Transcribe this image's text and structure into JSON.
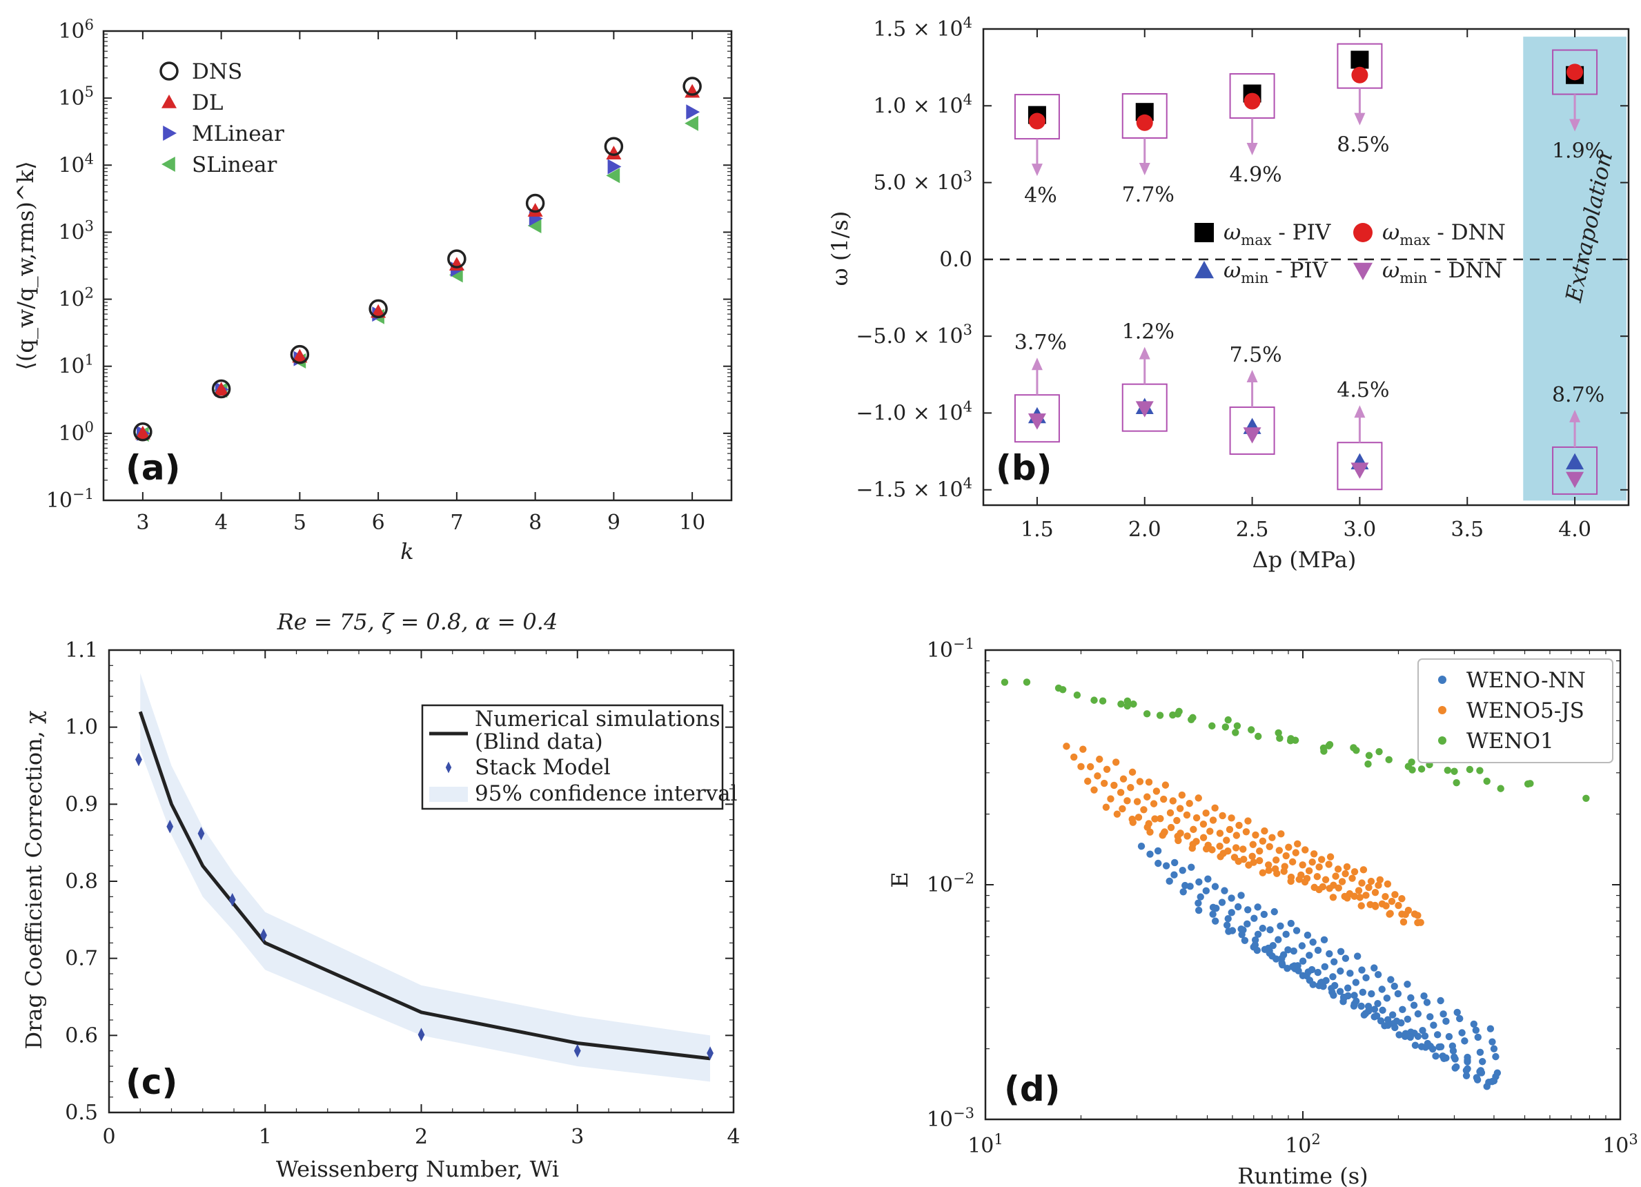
{
  "chart_data": [
    {
      "panel": "(a)",
      "type": "scatter",
      "xscale": "linear",
      "yscale": "log",
      "xlabel": "k",
      "ylabel": "⟨(q_w/q_w,rms)^k⟩",
      "xlim": [
        2.5,
        10.5
      ],
      "ylim": [
        0.1,
        1000000
      ],
      "x_ticks": [
        "3",
        "4",
        "5",
        "6",
        "7",
        "8",
        "9",
        "10"
      ],
      "y_ticks": [
        {
          "v": 0.1,
          "b": "10",
          "e": "−1"
        },
        {
          "v": 1,
          "b": "10",
          "e": "0"
        },
        {
          "v": 10,
          "b": "10",
          "e": "1"
        },
        {
          "v": 100,
          "b": "10",
          "e": "2"
        },
        {
          "v": 1000,
          "b": "10",
          "e": "3"
        },
        {
          "v": 10000,
          "b": "10",
          "e": "4"
        },
        {
          "v": 100000,
          "b": "10",
          "e": "5"
        },
        {
          "v": 1000000,
          "b": "10",
          "e": "6"
        }
      ],
      "legend_position": "top-left",
      "series": [
        {
          "name": "DNS",
          "marker": "open-circle",
          "color": "#222222",
          "x": [
            3,
            4,
            5,
            6,
            7,
            8,
            9,
            10
          ],
          "values": [
            1.05,
            4.6,
            15,
            72,
            400,
            2700,
            19000,
            150000
          ]
        },
        {
          "name": "DL",
          "marker": "triangle-up",
          "color": "#d62728",
          "x": [
            3,
            4,
            5,
            6,
            7,
            8,
            9,
            10
          ],
          "values": [
            1.0,
            4.5,
            14,
            65,
            330,
            2100,
            15000,
            125000
          ]
        },
        {
          "name": "MLinear",
          "marker": "triangle-right",
          "color": "#4a4fc4",
          "x": [
            3,
            4,
            5,
            6,
            7,
            8,
            9,
            10
          ],
          "values": [
            1.0,
            4.5,
            13,
            60,
            280,
            1600,
            9500,
            62000
          ]
        },
        {
          "name": "SLinear",
          "marker": "triangle-left",
          "color": "#5cb85c",
          "x": [
            3,
            4,
            5,
            6,
            7,
            8,
            9,
            10
          ],
          "values": [
            0.97,
            4.4,
            12,
            55,
            230,
            1250,
            7000,
            42000
          ]
        }
      ]
    },
    {
      "panel": "(b)",
      "type": "scatter",
      "xlabel": "Δp (MPa)",
      "ylabel": "ω (1/s)",
      "xlim": [
        1.25,
        4.25
      ],
      "ylim": [
        -16000,
        15000
      ],
      "x_ticks": [
        "1.5",
        "2.0",
        "2.5",
        "3.0",
        "3.5",
        "4.0"
      ],
      "y_ticks": [
        {
          "v": 15000,
          "t": "1.5 × 10",
          "e": "4"
        },
        {
          "v": 10000,
          "t": "1.0 × 10",
          "e": "4"
        },
        {
          "v": 5000,
          "t": "5.0 × 10",
          "e": "3"
        },
        {
          "v": 0,
          "t": "0.0",
          "e": ""
        },
        {
          "v": -5000,
          "t": "−5.0 × 10",
          "e": "3"
        },
        {
          "v": -10000,
          "t": "−1.0 × 10",
          "e": "4"
        },
        {
          "v": -15000,
          "t": "−1.5 × 10",
          "e": "4"
        }
      ],
      "shaded_region_label": "Extrapolation",
      "x": [
        1.5,
        2.0,
        2.5,
        3.0,
        4.0
      ],
      "series": [
        {
          "name": "ω_max - PIV",
          "label_main": "ω",
          "label_sub": "max",
          "label_rest": " - PIV",
          "marker": "square",
          "color": "#000000",
          "values": [
            9400,
            9600,
            10800,
            13000,
            12000
          ]
        },
        {
          "name": "ω_max - DNN",
          "label_main": "ω",
          "label_sub": "max",
          "label_rest": " - DNN",
          "marker": "circle",
          "color": "#e02020",
          "values": [
            9000,
            8900,
            10300,
            12000,
            12200
          ]
        },
        {
          "name": "ω_min - PIV",
          "label_main": "ω",
          "label_sub": "min",
          "label_rest": " - PIV",
          "marker": "triangle-up",
          "color": "#3a55b4",
          "values": [
            -10200,
            -9600,
            -10900,
            -13200,
            -13200
          ]
        },
        {
          "name": "ω_min - DNN",
          "label_main": "ω",
          "label_sub": "min",
          "label_rest": " - DNN",
          "marker": "triangle-down",
          "color": "#b060b0",
          "values": [
            -10500,
            -9700,
            -11400,
            -13700,
            -14300
          ]
        }
      ],
      "annotations_max": [
        "4%",
        "7.7%",
        "4.9%",
        "8.5%",
        "1.9%"
      ],
      "annotations_min": [
        "3.7%",
        "1.2%",
        "7.5%",
        "4.5%",
        "8.7%"
      ],
      "dashed_zero_line": true
    },
    {
      "panel": "(c)",
      "type": "line",
      "title": "Re = 75, ζ = 0.8, α = 0.4",
      "xlabel": "Weissenberg Number, Wi",
      "ylabel": "Drag Coefficient Correction, χ",
      "xlim": [
        0,
        4
      ],
      "ylim": [
        0.5,
        1.1
      ],
      "x_ticks": [
        "0",
        "1",
        "2",
        "3",
        "4"
      ],
      "y_ticks": [
        "0.5",
        "0.6",
        "0.7",
        "0.8",
        "0.9",
        "1.0",
        "1.1"
      ],
      "legend_position": "top-right",
      "legend": [
        "Numerical simulations",
        "(Blind data)",
        "Stack Model",
        "95% confidence interval"
      ],
      "line": {
        "name": "Numerical simulations (Blind data)",
        "x": [
          0.2,
          0.4,
          0.6,
          0.8,
          1.0,
          2.0,
          3.0,
          3.85
        ],
        "values": [
          1.02,
          0.9,
          0.82,
          0.77,
          0.72,
          0.63,
          0.59,
          0.57
        ]
      },
      "band": {
        "name": "95% confidence interval",
        "x": [
          0.2,
          0.4,
          0.6,
          0.8,
          1.0,
          2.0,
          3.0,
          3.85
        ],
        "upper": [
          1.07,
          0.95,
          0.87,
          0.81,
          0.76,
          0.665,
          0.625,
          0.6
        ],
        "lower": [
          0.97,
          0.86,
          0.78,
          0.735,
          0.685,
          0.6,
          0.56,
          0.54
        ]
      },
      "points": {
        "name": "Stack Model",
        "marker": "diamond",
        "color": "#3a4fa8",
        "x": [
          0.19,
          0.39,
          0.59,
          0.79,
          0.99,
          2.0,
          3.0,
          3.85
        ],
        "values": [
          0.958,
          0.871,
          0.862,
          0.776,
          0.73,
          0.601,
          0.58,
          0.577
        ]
      }
    },
    {
      "panel": "(d)",
      "type": "scatter",
      "xscale": "log",
      "yscale": "log",
      "xlabel": "Runtime (s)",
      "ylabel": "E",
      "xlim": [
        10,
        1000
      ],
      "ylim": [
        0.001,
        0.1
      ],
      "x_ticks": [
        {
          "v": 10,
          "b": "10",
          "e": "1"
        },
        {
          "v": 100,
          "b": "10",
          "e": "2"
        },
        {
          "v": 1000,
          "b": "10",
          "e": "3"
        }
      ],
      "y_ticks": [
        {
          "v": 0.001,
          "b": "10",
          "e": "−3"
        },
        {
          "v": 0.01,
          "b": "10",
          "e": "−2"
        },
        {
          "v": 0.1,
          "b": "10",
          "e": "−1"
        }
      ],
      "legend_position": "top-right",
      "series": [
        {
          "name": "WENO-NN",
          "color": "#3f7ac0",
          "cloud": {
            "x_start": [
              31,
              37,
              45,
              58,
              75
            ],
            "x_end": [
              390,
              400,
              410,
              405,
              395
            ],
            "y_start": [
              0.015,
              0.009,
              0.006,
              0.0045,
              0.0036
            ],
            "y_end": [
              0.0024,
              0.002,
              0.0017,
              0.0015,
              0.00135
            ],
            "rows": [
              [
                31,
                390,
                0.015,
                0.0024
              ],
              [
                33,
                395,
                0.0135,
                0.0022
              ],
              [
                35,
                400,
                0.012,
                0.002
              ],
              [
                38,
                405,
                0.0105,
                0.0018
              ],
              [
                42,
                410,
                0.0092,
                0.0016
              ],
              [
                47,
                405,
                0.008,
                0.0015
              ],
              [
                53,
                400,
                0.007,
                0.0015
              ],
              [
                60,
                395,
                0.0062,
                0.00145
              ],
              [
                70,
                385,
                0.0055,
                0.0014
              ],
              [
                80,
                380,
                0.0049,
                0.0014
              ]
            ],
            "points_per_row": 22
          }
        },
        {
          "name": "WENO5-JS",
          "color": "#f0872a",
          "cloud": {
            "rows": [
              [
                18,
                175,
                0.04,
                0.0105
              ],
              [
                19,
                185,
                0.035,
                0.0098
              ],
              [
                20,
                195,
                0.031,
                0.0092
              ],
              [
                21,
                205,
                0.028,
                0.0086
              ],
              [
                22,
                215,
                0.025,
                0.008
              ],
              [
                24,
                225,
                0.022,
                0.0075
              ],
              [
                26,
                230,
                0.02,
                0.0072
              ],
              [
                29,
                235,
                0.0185,
                0.007
              ],
              [
                33,
                230,
                0.017,
                0.0068
              ]
            ],
            "points_per_row": 20
          }
        },
        {
          "name": "WENO1",
          "color": "#5cb040",
          "cloud": {
            "rows": [
              [
                11.5,
                780,
                0.075,
                0.024
              ],
              [
                13.5,
                520,
                0.073,
                0.027
              ],
              [
                17,
                420,
                0.067,
                0.025
              ],
              [
                22,
                380,
                0.062,
                0.028
              ],
              [
                28,
                300,
                0.057,
                0.03
              ]
            ],
            "points_per_row": 11
          }
        }
      ]
    }
  ],
  "panel_labels": [
    "(a)",
    "(b)",
    "(c)",
    "(d)"
  ]
}
